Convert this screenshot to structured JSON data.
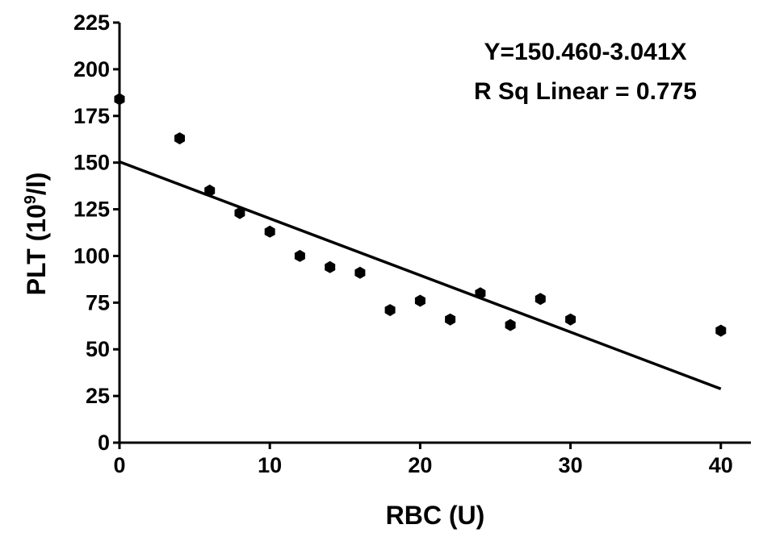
{
  "chart_data": {
    "type": "scatter",
    "title": "",
    "xlabel": "RBC (U)",
    "ylabel_main": "PLT (10",
    "ylabel_sup": "9",
    "ylabel_tail": "/l)",
    "xlim": [
      0,
      42
    ],
    "ylim": [
      0,
      225
    ],
    "x_ticks": [
      0,
      10,
      20,
      30,
      40
    ],
    "y_ticks": [
      0,
      25,
      50,
      75,
      100,
      125,
      150,
      175,
      200,
      225
    ],
    "grid": false,
    "series": [
      {
        "x": [
          0,
          4,
          6,
          8,
          10,
          12,
          14,
          16,
          18,
          20,
          22,
          24,
          26,
          28,
          30,
          40
        ],
        "y": [
          184,
          163,
          135,
          123,
          113,
          100,
          94,
          91,
          71,
          76,
          66,
          80,
          63,
          77,
          66,
          60
        ]
      }
    ],
    "fit_line": {
      "intercept": 150.46,
      "slope": -3.041,
      "x_range": [
        0,
        40
      ]
    },
    "annotations": [
      "Y=150.460-3.041X",
      "R Sq Linear = 0.775"
    ],
    "colors": {
      "points": "#000000",
      "line": "#000000",
      "axes": "#000000"
    }
  }
}
